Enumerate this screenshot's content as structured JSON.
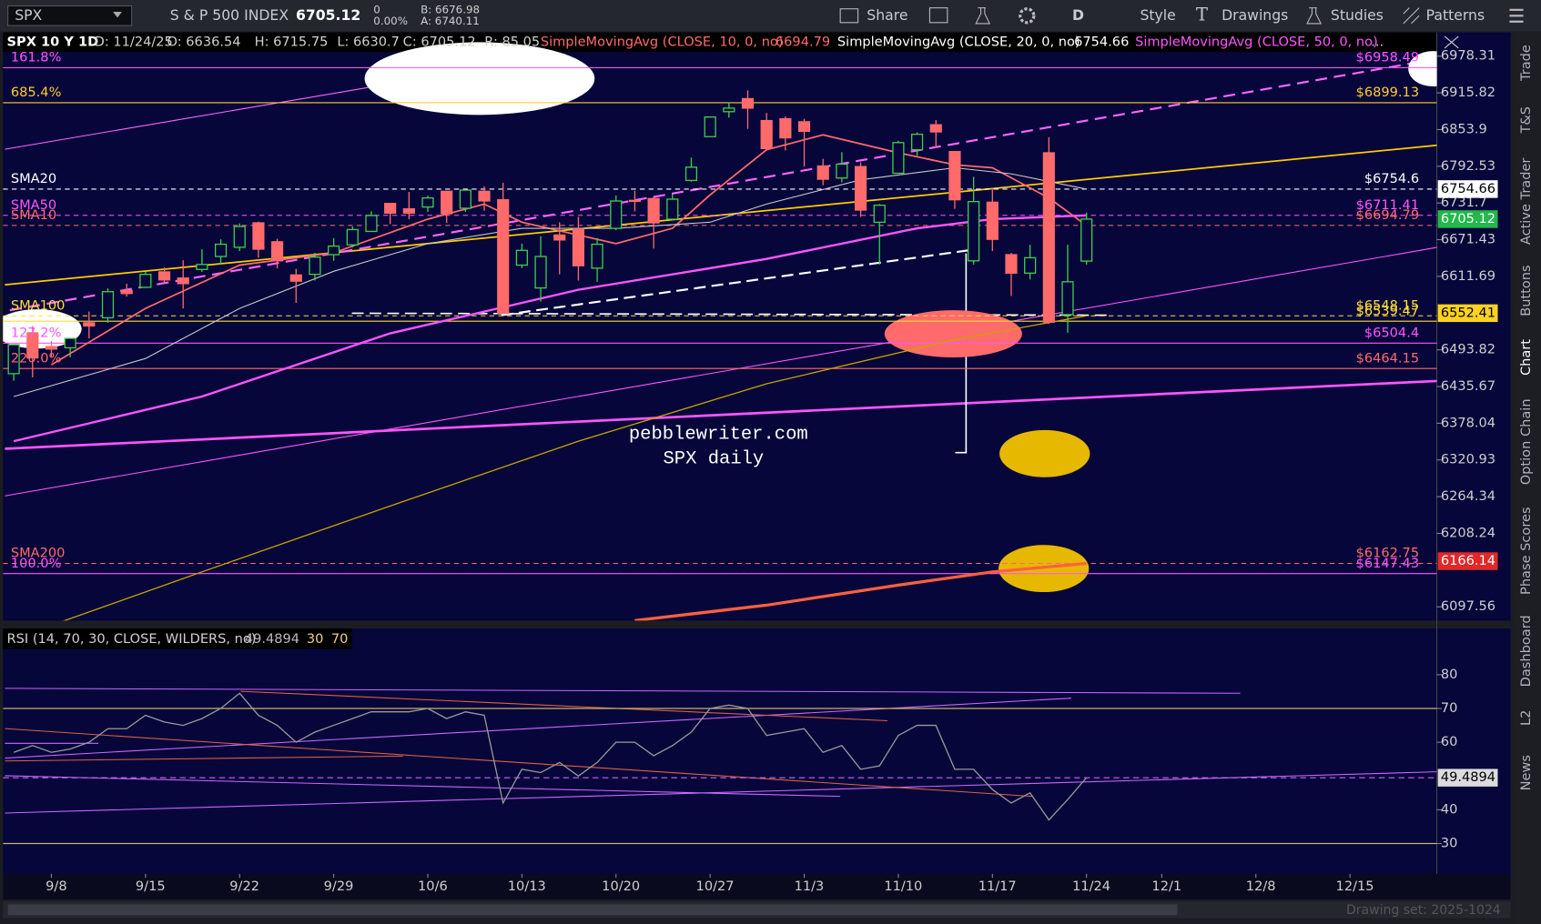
{
  "toolbar": {
    "symbol": "SPX",
    "description": "S & P 500 INDEX",
    "last": "6705.12",
    "change": "0",
    "change_pct": "0.00%",
    "bid": "B: 6676.98",
    "ask": "A: 6740.11",
    "buttons": [
      "Share",
      "D",
      "Style",
      "Drawings",
      "Studies",
      "Patterns"
    ]
  },
  "header": {
    "chart": "SPX 10 Y 1D",
    "date": "D: 11/24/25",
    "open": "O: 6636.54",
    "high": "H: 6715.75",
    "low": "L: 6630.7",
    "close": "C: 6705.12",
    "range": "R: 85.05",
    "studies": [
      {
        "label": "SimpleMovingAvg (CLOSE, 10, 0, no)",
        "value": "6694.79",
        "color": "#ff6b6b"
      },
      {
        "label": "SimpleMovingAvg (CLOSE, 20, 0, no)",
        "value": "6754.66",
        "color": "#ffffff"
      },
      {
        "label": "SimpleMovingAvg (CLOSE, 50, 0, no)",
        "color": "#ff55ff"
      }
    ],
    "more": "..."
  },
  "chart_data": [
    {
      "type": "candlestick",
      "log": true,
      "up_color": "#3fd04a",
      "down_color": "#ff6b6b",
      "categories": [
        null,
        null,
        "9/8",
        null,
        null,
        null,
        null,
        "9/15",
        null,
        null,
        null,
        null,
        "9/22",
        null,
        null,
        null,
        null,
        "9/29",
        null,
        null,
        null,
        null,
        "10/6",
        null,
        null,
        null,
        null,
        "10/13",
        null,
        null,
        null,
        null,
        "10/20",
        null,
        null,
        null,
        null,
        "10/27",
        null,
        null,
        null,
        null,
        "11/3",
        null,
        null,
        null,
        null,
        "11/10",
        null,
        null,
        null,
        null,
        "11/17",
        null,
        null,
        null,
        null,
        "11/24",
        null,
        null,
        null,
        "12/1",
        null,
        null,
        null,
        null,
        "12/8",
        null,
        null,
        null,
        null,
        "12/15",
        null,
        null,
        null,
        null
      ],
      "open": [
        6456,
        6521,
        6499,
        6497,
        6537,
        6545,
        6589,
        6594,
        6619,
        6609,
        6623,
        6644,
        6659,
        6699,
        6668,
        6614,
        6615,
        6647,
        6663,
        6685,
        6731,
        6722,
        6725,
        6751,
        6723,
        6751,
        6737,
        6630,
        6593,
        6679,
        6689,
        6625,
        6690,
        6736,
        6739,
        6705,
        6769,
        6842,
        6884,
        6906,
        6869,
        6872,
        6867,
        6793,
        6773,
        6792,
        6700,
        6781,
        6820,
        6862,
        6817,
        6637,
        6733,
        6647,
        6617,
        6815,
        6550,
        6636.54,
        null,
        null,
        null,
        null,
        null,
        null,
        null,
        null,
        null,
        null,
        null,
        null,
        null,
        null,
        null,
        null,
        null,
        null
      ],
      "high": [
        6502,
        6532,
        6508,
        6512,
        6555,
        6592,
        6600,
        6619,
        6626,
        6638,
        6656,
        6672,
        6698,
        6701,
        6673,
        6624,
        6650,
        6674,
        6693,
        6718,
        6731,
        6750,
        6744,
        6751,
        6753,
        6759,
        6765,
        6665,
        6677,
        6700,
        6709,
        6674,
        6744,
        6752,
        6742,
        6747,
        6807,
        6875,
        6900,
        6920,
        6882,
        6876,
        6872,
        6805,
        6816,
        6799,
        6730,
        6835,
        6849,
        6870,
        6818,
        6775,
        6757,
        6650,
        6663,
        6841,
        6663,
        6715.75,
        null,
        null,
        null,
        null,
        null,
        null,
        null,
        null,
        null,
        null,
        null,
        null,
        null,
        null,
        null,
        null,
        null,
        null
      ],
      "low": [
        6445,
        6450,
        6482,
        6482,
        6512,
        6537,
        6579,
        6593,
        6601,
        6560,
        6619,
        6631,
        6653,
        6642,
        6625,
        6569,
        6605,
        6637,
        6659,
        6684,
        6697,
        6705,
        6717,
        6699,
        6717,
        6719,
        6551,
        6625,
        6571,
        6615,
        6605,
        6603,
        6687,
        6718,
        6657,
        6703,
        6767,
        6842,
        6874,
        6855,
        6822,
        6819,
        6792,
        6761,
        6766,
        6709,
        6631,
        6781,
        6810,
        6823,
        6722,
        6631,
        6653,
        6580,
        6607,
        6535,
        6521,
        6630.7,
        null,
        null,
        null,
        null,
        null,
        null,
        null,
        null,
        null,
        null,
        null,
        null,
        null,
        null,
        null,
        null,
        null,
        null
      ],
      "close": [
        6502,
        6481,
        6495,
        6512,
        6532,
        6587,
        6584,
        6615,
        6606,
        6600,
        6631,
        6664,
        6693,
        6656,
        6637,
        6604,
        6643,
        6661,
        6688,
        6711,
        6715,
        6715,
        6740,
        6714,
        6753,
        6735,
        6552,
        6654,
        6644,
        6671,
        6629,
        6664,
        6735,
        6735,
        6699,
        6738,
        6791,
        6875,
        6890,
        6890,
        6822,
        6840,
        6851,
        6771,
        6796,
        6720,
        6728,
        6832,
        6846,
        6850,
        6737,
        6734,
        6672,
        6617,
        6642,
        6538,
        6603,
        6705.12,
        null,
        null,
        null,
        null,
        null,
        null,
        null,
        null,
        null,
        null,
        null,
        null,
        null,
        null,
        null,
        null,
        null,
        null
      ],
      "ylim": [
        6077,
        7019
      ],
      "yticks": [
        6978.31,
        6915.82,
        6853.9,
        6792.53,
        6731.7,
        6671.43,
        6611.69,
        6493.82,
        6435.67,
        6378.04,
        6320.93,
        6264.34,
        6208.24,
        6097.56
      ],
      "studies": [
        {
          "color": "#ff6b6b",
          "width": 1.6,
          "x": [
            2,
            7,
            12,
            17,
            22,
            25,
            27,
            32,
            35,
            37,
            40,
            43,
            47,
            50,
            52,
            55,
            57
          ],
          "values": [
            6470,
            6560,
            6630,
            6650,
            6705,
            6730,
            6700,
            6665,
            6690,
            6745,
            6820,
            6845,
            6815,
            6795,
            6790,
            6740,
            6694.79
          ]
        },
        {
          "color": "#c8c8c8",
          "width": 1,
          "x": [
            0,
            7,
            12,
            17,
            22,
            27,
            32,
            37,
            40,
            45,
            50,
            53,
            57
          ],
          "values": [
            6420,
            6480,
            6560,
            6620,
            6665,
            6690,
            6690,
            6700,
            6730,
            6770,
            6790,
            6780,
            6754.66
          ]
        },
        {
          "color": "#ff55ff",
          "width": 2.2,
          "x": [
            0,
            10,
            20,
            30,
            40,
            48,
            52,
            57
          ],
          "values": [
            6350,
            6420,
            6520,
            6590,
            6640,
            6690,
            6705,
            6711.41
          ]
        },
        {
          "color": "#c9a400",
          "width": 1.2,
          "x": [
            2,
            10,
            20,
            30,
            40,
            50,
            57
          ],
          "values": [
            6070,
            6150,
            6250,
            6350,
            6440,
            6510,
            6548.15
          ]
        },
        {
          "color": "#ff6040",
          "width": 3,
          "x": [
            33,
            40,
            47,
            52,
            57
          ],
          "values": [
            6077,
            6100,
            6130,
            6150,
            6162.75
          ]
        }
      ],
      "levels": [
        {
          "name": "161.8%",
          "color": "#ff55ff",
          "style": "solid",
          "price": {
            "value": 6958.49,
            "label": "$6958.49"
          }
        },
        {
          "name": "685.4%",
          "color": "#ffcc33",
          "style": "solid",
          "price": {
            "value": 6899.13,
            "label": "$6899.13"
          }
        },
        {
          "name": "SMA20",
          "color": "#ffffff",
          "style": "dashed",
          "price": {
            "value": 6754.6,
            "label": "$6754.6"
          }
        },
        {
          "name": "SMA50",
          "color": "#ff55ff",
          "style": "dashed",
          "price": {
            "value": 6711.41,
            "label": "$6711.41"
          }
        },
        {
          "name": "SMA10",
          "color": "#ff6b6b",
          "style": "dashed",
          "price": {
            "value": 6694.79,
            "label": "$6694.79"
          }
        },
        {
          "name": "SMA100",
          "color": "#ffdd33",
          "style": "dashed",
          "price": {
            "value": 6548.15,
            "label": "$6548.15"
          }
        },
        {
          "color": "#ffdd33",
          "style": "solid",
          "price": {
            "value": 6539.47,
            "label": "$6539.47"
          }
        },
        {
          "name": "127.2%",
          "color": "#ff55ff",
          "style": "solid",
          "price": {
            "value": 6504.4,
            "label": "$6504.4"
          }
        },
        {
          "name": "220.0%",
          "color": "#ff6b6b",
          "style": "solid",
          "price": {
            "value": 6464.15,
            "label": "$6464.15"
          }
        },
        {
          "name": "SMA200",
          "color": "#ff6b6b",
          "style": "dashed",
          "price": {
            "value": 6162.75,
            "label": "$6162.75"
          }
        },
        {
          "name": "100.0%",
          "color": "#ff55ff",
          "style": "solid",
          "price": {
            "value": 6147.43,
            "label": "$6147.43"
          }
        }
      ],
      "price_markers": [
        {
          "value": 6754.66,
          "color": "#ffffff",
          "text_color": "#000000"
        },
        {
          "value": 6705.12,
          "color": "#22b84a",
          "text_color": "#ffffff"
        },
        {
          "value": 6552.41,
          "color": "#ffd21f",
          "text_color": "#000000"
        },
        {
          "value": 6166.14,
          "color": "#e02828",
          "text_color": "#ffffff"
        }
      ],
      "annotation": [
        "pebblewriter.com",
        "SPX daily"
      ]
    },
    {
      "type": "line",
      "title": "RSI (14, 70, 30, CLOSE, WILDERS, no)",
      "color": "#9a9a9a",
      "values": [
        57,
        59,
        57,
        58,
        60,
        64,
        64,
        68,
        66,
        65,
        67,
        70,
        74.5,
        68,
        65,
        60,
        63,
        65,
        67,
        69,
        69,
        69,
        70,
        67,
        69,
        68,
        42,
        52,
        51,
        54,
        50,
        54,
        60,
        60,
        56,
        59,
        63,
        70,
        71,
        70,
        62,
        63,
        64,
        57,
        59,
        52,
        53,
        62,
        65,
        65,
        52,
        52,
        46,
        42,
        45,
        37,
        43,
        49.4894,
        null,
        null,
        null,
        null,
        null,
        null,
        null,
        null,
        null,
        null,
        null,
        null,
        null,
        null,
        null,
        null,
        null,
        null
      ],
      "ylim": [
        21,
        93.7
      ],
      "yticks": [
        30,
        40,
        60,
        70,
        80
      ],
      "bands": [
        70,
        30
      ],
      "band_color": "#c9b46a"
    }
  ],
  "side_tabs": [
    "Trade",
    "T&S",
    "Active Trader",
    "Buttons",
    "Chart",
    "Option Chain",
    "Phase Scores",
    "Dashboard",
    "L2",
    "News"
  ],
  "footer": {
    "drawing_set": "Drawing set: 2025-1024"
  }
}
